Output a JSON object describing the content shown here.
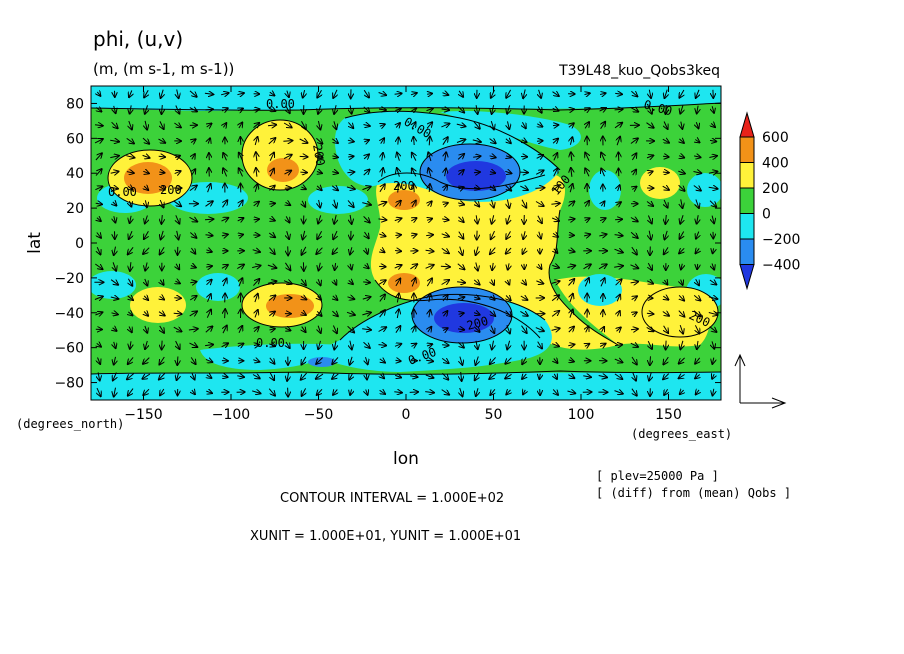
{
  "chart_data": {
    "type": "contour",
    "title": "phi, (u,v)",
    "units": "(m, (m s-1, m s-1))",
    "run_label": "T39L48_kuo_Qobs3keq",
    "xlabel": "lon",
    "ylabel": "lat",
    "x_units": "(degrees_east)",
    "y_units": "(degrees_north)",
    "xlim": [
      -180,
      180
    ],
    "ylim": [
      -90,
      90
    ],
    "x_ticks": [
      -150,
      -100,
      -50,
      0,
      50,
      100,
      150
    ],
    "y_ticks": [
      80,
      60,
      40,
      20,
      0,
      -20,
      -40,
      -60,
      -80
    ],
    "colorbar": {
      "levels": [
        600,
        400,
        200,
        0,
        -200,
        -400
      ],
      "colors": [
        "#e8221a",
        "#f29218",
        "#fff23a",
        "#3cd23a",
        "#1ee6f0",
        "#2a8cf0",
        "#2038e0"
      ]
    },
    "contour_labels": [
      "0.00",
      "0.00",
      "0.00",
      "0.00",
      "0.00",
      "0.00",
      "200",
      "200",
      "200",
      "200",
      "200",
      "100"
    ],
    "contour_interval": "CONTOUR INTERVAL = 1.000E+02",
    "vector_units": "XUNIT = 1.000E+01, YUNIT = 1.000E+01",
    "annotations": [
      "[ plev=25000 Pa ]",
      "[ (diff) from (mean) Qobs ]"
    ]
  }
}
